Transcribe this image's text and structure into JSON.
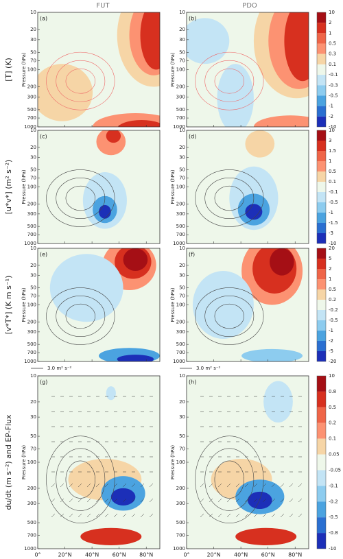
{
  "columns": [
    "FUT",
    "PDO"
  ],
  "colorbar_colors": [
    "#a50f15",
    "#d7301f",
    "#ef6548",
    "#fc9272",
    "#f6d5a6",
    "#eef7ea",
    "#c3e4f5",
    "#8dccef",
    "#4ba3e0",
    "#2a6fd1",
    "#1c2fb8"
  ],
  "y_axis": {
    "label": "Pressure (hPa)",
    "lim": [
      10,
      1000
    ],
    "ticks": [
      10,
      20,
      30,
      50,
      70,
      100,
      200,
      300,
      500,
      700,
      1000
    ]
  },
  "x_axis": {
    "lim": [
      0,
      90
    ],
    "ticks": [
      {
        "value": 0,
        "label": "0°"
      },
      {
        "value": 20,
        "label": "20°N"
      },
      {
        "value": 40,
        "label": "40°N"
      },
      {
        "value": 60,
        "label": "60°N"
      },
      {
        "value": 80,
        "label": "80°N"
      }
    ]
  },
  "arrow_scale": "3.0 m² s⁻²",
  "rows": [
    {
      "label": "[T] (K)",
      "panels": [
        "(a)",
        "(b)"
      ],
      "colorbar_ticks": [
        10,
        2,
        1,
        0.5,
        0.3,
        0.1,
        -0.1,
        -0.3,
        -0.5,
        -1,
        -2,
        -10
      ]
    },
    {
      "label": "[u*v*] (m² s⁻²)",
      "panels": [
        "(c)",
        "(d)"
      ],
      "colorbar_ticks": [
        10,
        3,
        1.5,
        1,
        0.5,
        0.1,
        -0.1,
        -0.5,
        -1,
        -1.5,
        -3,
        -10
      ]
    },
    {
      "label": "[v*T*] (K m s⁻¹)",
      "panels": [
        "(e)",
        "(f)"
      ],
      "colorbar_ticks": [
        20,
        5,
        2,
        1,
        0.5,
        0.2,
        -0.2,
        -0.5,
        -1,
        -2,
        -5,
        -20
      ]
    },
    {
      "label": "du/dt (m s⁻²) and EP-Flux",
      "panels": [
        "(g)",
        "(h)"
      ],
      "colorbar_ticks": [
        10,
        0.8,
        0.5,
        0.2,
        0.1,
        0.05,
        -0.05,
        -0.1,
        -0.2,
        -0.5,
        -0.8,
        -10
      ]
    }
  ]
}
